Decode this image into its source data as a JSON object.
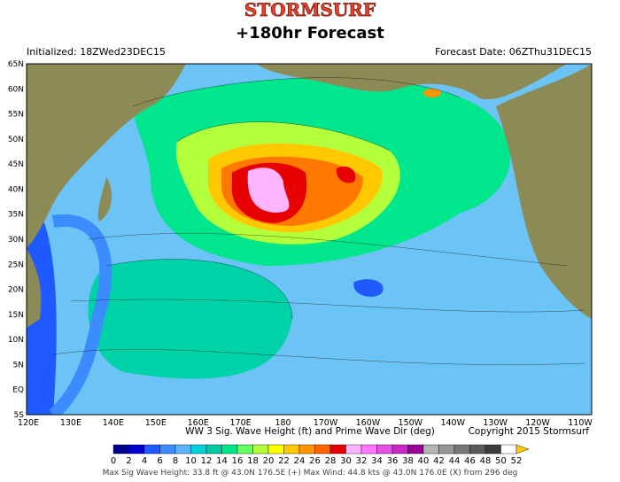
{
  "header": {
    "brand": "STORMSURF",
    "title": "+180hr Forecast",
    "initialized": "Initialized: 18ZWed23DEC15",
    "forecast_date": "Forecast Date: 06ZThu31DEC15"
  },
  "map": {
    "lat_labels": [
      "65N",
      "60N",
      "55N",
      "50N",
      "45N",
      "40N",
      "35N",
      "30N",
      "25N",
      "20N",
      "15N",
      "10N",
      "5N",
      "EQ",
      "5S"
    ],
    "lon_labels": [
      "120E",
      "130E",
      "140E",
      "150E",
      "160E",
      "170E",
      "180",
      "170W",
      "160W",
      "150W",
      "140W",
      "130W",
      "120W",
      "110W"
    ]
  },
  "footer": {
    "caption": "WW 3 Sig. Wave Height (ft) and Prime Wave Dir (deg)",
    "copyright": "Copyright 2015 Stormsurf",
    "stats": "Max Sig Wave Height: 33.8 ft @ 43.0N 176.5E (+)   Max Wind: 44.8 kts @ 43.0N 176.0E (X) from 296 deg"
  },
  "legend": {
    "labels": [
      0,
      2,
      4,
      6,
      8,
      10,
      12,
      14,
      16,
      18,
      20,
      22,
      24,
      26,
      28,
      30,
      32,
      34,
      36,
      38,
      40,
      42,
      44,
      46,
      48,
      50,
      52
    ],
    "colors": [
      "#000090",
      "#0000d0",
      "#1e5aff",
      "#3c8cff",
      "#5ab4ff",
      "#00d2dc",
      "#00c8a0",
      "#00e68c",
      "#64ff64",
      "#b4ff3c",
      "#ffff00",
      "#ffc800",
      "#ff9600",
      "#ff6400",
      "#e60000",
      "#ffb4ff",
      "#ff78ff",
      "#e650e6",
      "#c828c8",
      "#960096",
      "#b4b4b4",
      "#969696",
      "#787878",
      "#5a5a5a",
      "#3c3c3c",
      "#ffffff"
    ],
    "arrow_color": "#ffc800"
  }
}
